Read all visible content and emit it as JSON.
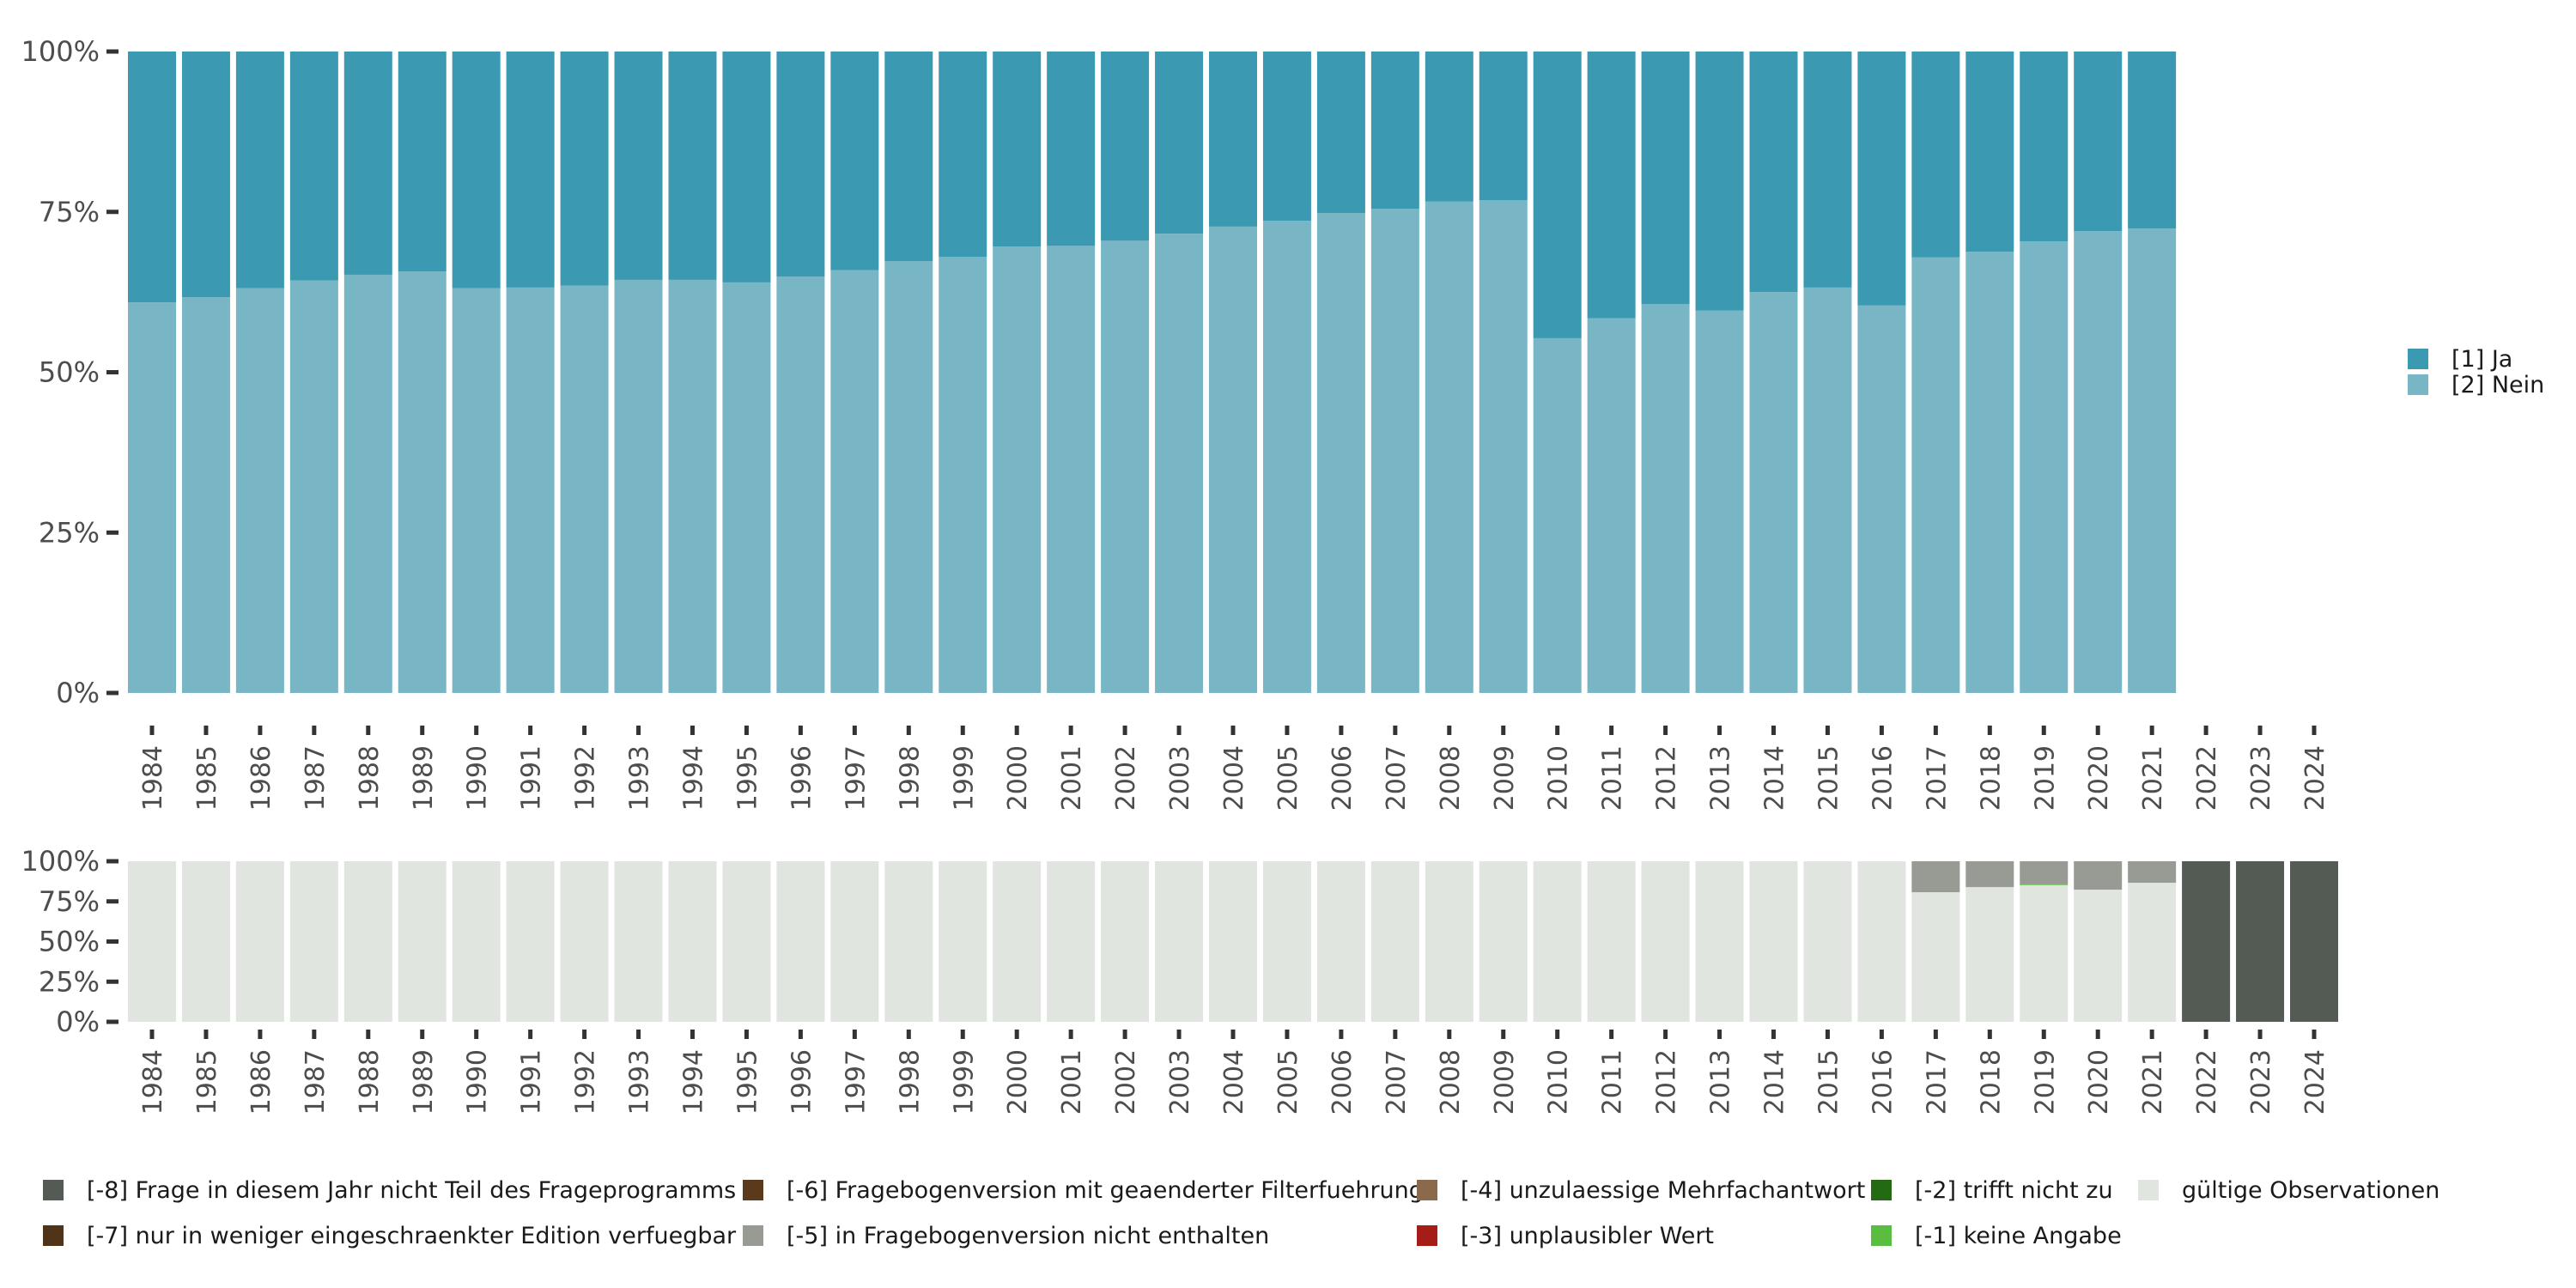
{
  "chart_data": [
    {
      "type": "bar",
      "stacked": true,
      "percent": true,
      "title": "",
      "xlabel": "",
      "ylabel": "",
      "ylim": [
        0,
        100
      ],
      "yticks": [
        "0%",
        "25%",
        "50%",
        "75%",
        "100%"
      ],
      "categories": [
        "1984",
        "1985",
        "1986",
        "1987",
        "1988",
        "1989",
        "1990",
        "1991",
        "1992",
        "1993",
        "1994",
        "1995",
        "1996",
        "1997",
        "1998",
        "1999",
        "2000",
        "2001",
        "2002",
        "2003",
        "2004",
        "2005",
        "2006",
        "2007",
        "2008",
        "2009",
        "2010",
        "2011",
        "2012",
        "2013",
        "2014",
        "2015",
        "2016",
        "2017",
        "2018",
        "2019",
        "2020",
        "2021",
        "2022",
        "2023",
        "2024"
      ],
      "series": [
        {
          "name": "[2] Nein",
          "color": "#78b6c5",
          "values": [
            60.9,
            61.7,
            63.1,
            64.3,
            65.2,
            65.7,
            63.1,
            63.2,
            63.5,
            64.4,
            64.4,
            64.0,
            64.9,
            65.9,
            67.3,
            68.0,
            69.6,
            69.7,
            70.5,
            71.6,
            72.7,
            73.6,
            74.8,
            75.5,
            76.6,
            76.8,
            55.3,
            58.4,
            60.6,
            59.6,
            62.5,
            63.2,
            60.4,
            67.9,
            68.8,
            70.4,
            72.0,
            72.4,
            null,
            null,
            null
          ]
        },
        {
          "name": "[1] Ja",
          "color": "#3c99b2",
          "values": [
            39.1,
            38.3,
            36.9,
            35.7,
            34.8,
            34.3,
            36.9,
            36.8,
            36.5,
            35.6,
            35.6,
            36.0,
            35.1,
            34.1,
            32.7,
            32.0,
            30.4,
            30.3,
            29.5,
            28.4,
            27.3,
            26.4,
            25.2,
            24.5,
            23.4,
            23.2,
            44.7,
            41.6,
            39.4,
            40.4,
            37.5,
            36.8,
            39.6,
            32.1,
            31.2,
            29.6,
            28.0,
            27.6,
            null,
            null,
            null
          ]
        }
      ],
      "legend": {
        "placement": "right",
        "entries": [
          {
            "label": "[1] Ja",
            "color": "#3c99b2"
          },
          {
            "label": "[2] Nein",
            "color": "#78b6c5"
          }
        ]
      }
    },
    {
      "type": "bar",
      "stacked": true,
      "percent": true,
      "title": "",
      "xlabel": "",
      "ylabel": "",
      "ylim": [
        0,
        100
      ],
      "yticks": [
        "0%",
        "25%",
        "50%",
        "75%",
        "100%"
      ],
      "categories": [
        "1984",
        "1985",
        "1986",
        "1987",
        "1988",
        "1989",
        "1990",
        "1991",
        "1992",
        "1993",
        "1994",
        "1995",
        "1996",
        "1997",
        "1998",
        "1999",
        "2000",
        "2001",
        "2002",
        "2003",
        "2004",
        "2005",
        "2006",
        "2007",
        "2008",
        "2009",
        "2010",
        "2011",
        "2012",
        "2013",
        "2014",
        "2015",
        "2016",
        "2017",
        "2018",
        "2019",
        "2020",
        "2021",
        "2022",
        "2023",
        "2024"
      ],
      "series": [
        {
          "name": "gültige Observationen",
          "color": "#e0e5e0",
          "values": [
            100,
            100,
            100,
            100,
            100,
            100,
            100,
            100,
            100,
            100,
            100,
            100,
            100,
            100,
            100,
            100,
            100,
            100,
            100,
            100,
            100,
            100,
            100,
            100,
            100,
            100,
            100,
            100,
            100,
            100,
            100,
            100,
            100,
            80.7,
            83.9,
            85.3,
            82.3,
            86.6,
            0,
            0,
            0
          ]
        },
        {
          "name": "[-1] keine Angabe",
          "color": "#5bbd40",
          "values": [
            0,
            0,
            0,
            0,
            0,
            0,
            0,
            0,
            0,
            0,
            0,
            0,
            0,
            0,
            0,
            0,
            0,
            0,
            0,
            0,
            0,
            0,
            0,
            0,
            0,
            0,
            0,
            0,
            0,
            0,
            0,
            0,
            0,
            0,
            0,
            0.3,
            0,
            0,
            0,
            0,
            0
          ]
        },
        {
          "name": "[-5] in Fragebogenversion nicht enthalten",
          "color": "#979b93",
          "values": [
            0,
            0,
            0,
            0,
            0,
            0,
            0,
            0,
            0,
            0,
            0,
            0,
            0,
            0,
            0,
            0,
            0,
            0,
            0,
            0,
            0,
            0,
            0,
            0,
            0,
            0,
            0,
            0,
            0,
            0,
            0,
            0,
            0,
            19.3,
            16.1,
            14.4,
            17.7,
            13.4,
            0,
            0,
            0
          ]
        },
        {
          "name": "[-8] Frage in diesem Jahr nicht Teil des Frageprogramms",
          "color": "#545b54",
          "values": [
            0,
            0,
            0,
            0,
            0,
            0,
            0,
            0,
            0,
            0,
            0,
            0,
            0,
            0,
            0,
            0,
            0,
            0,
            0,
            0,
            0,
            0,
            0,
            0,
            0,
            0,
            0,
            0,
            0,
            0,
            0,
            0,
            0,
            0,
            0,
            0,
            0,
            0,
            100,
            100,
            100
          ]
        }
      ],
      "legend": {
        "placement": "bottom",
        "entries": [
          {
            "label": "[-8] Frage in diesem Jahr nicht Teil des Frageprogramms",
            "color": "#545b54"
          },
          {
            "label": "[-7] nur in weniger eingeschraenkter Edition verfuegbar",
            "color": "#4f3419"
          },
          {
            "label": "[-6] Fragebogenversion mit geaenderter Filterfuehrung",
            "color": "#5a3a1a"
          },
          {
            "label": "[-5] in Fragebogenversion nicht enthalten",
            "color": "#979b93"
          },
          {
            "label": "[-4] unzulaessige Mehrfachantwort",
            "color": "#8b6a4b"
          },
          {
            "label": "[-3] unplausibler Wert",
            "color": "#a41d16"
          },
          {
            "label": "[-2] trifft nicht zu",
            "color": "#236a12"
          },
          {
            "label": "[-1] keine Angabe",
            "color": "#5bbd40"
          },
          {
            "label": "gültige Observationen",
            "color": "#e0e5e0"
          }
        ]
      }
    }
  ]
}
